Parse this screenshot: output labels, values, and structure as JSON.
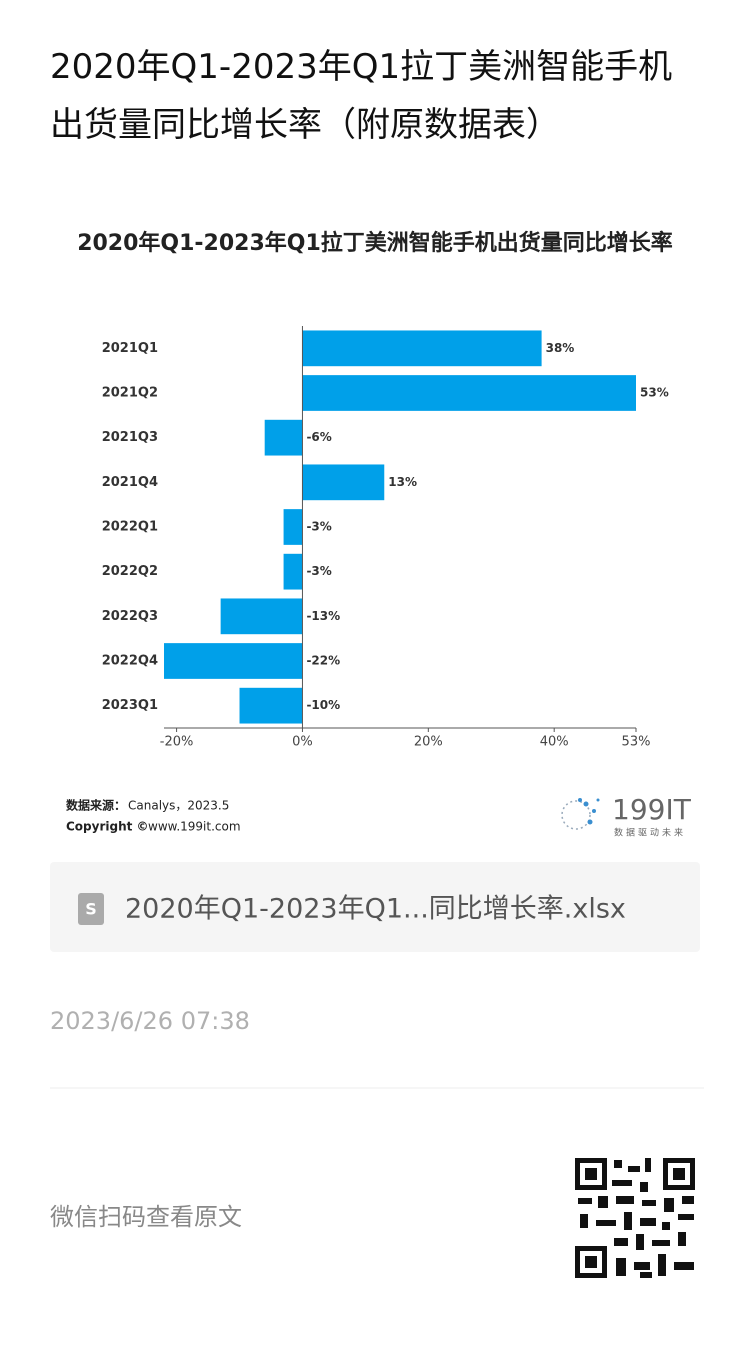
{
  "page_title": "2020年Q1-2023年Q1拉丁美洲智能手机出货量同比增长率（附原数据表）",
  "chart_data": {
    "type": "barh",
    "title": "2020年Q1-2023年Q1拉丁美洲智能手机出货量同比增长率",
    "categories": [
      "2021Q1",
      "2021Q2",
      "2021Q3",
      "2021Q4",
      "2022Q1",
      "2022Q2",
      "2022Q3",
      "2022Q4",
      "2023Q1"
    ],
    "values": [
      38,
      53,
      -6,
      13,
      -3,
      -3,
      -13,
      -22,
      -10
    ],
    "value_labels": [
      "38%",
      "53%",
      "-6%",
      "13%",
      "-3%",
      "-3%",
      "-13%",
      "-22%",
      "-10%"
    ],
    "color": "#00a0e9",
    "xlim": [
      -22,
      53
    ],
    "xticks": [
      {
        "value": -20,
        "label": "-20%"
      },
      {
        "value": 0,
        "label": "0%"
      },
      {
        "value": 20,
        "label": "20%"
      },
      {
        "value": 40,
        "label": "40%"
      },
      {
        "value": 53,
        "label": "53%"
      }
    ],
    "grid": false
  },
  "source_label": "数据来源：",
  "source": "Canalys，2023.5",
  "copyright_label": "Copyright ©",
  "copyright": "www.199it.com",
  "logo": {
    "name": "199IT",
    "slogan": "数据驱动未来"
  },
  "attachment": "2020年Q1-2023年Q1...同比增长率.xlsx",
  "date": "2023/6/26 07:38",
  "footer": "微信扫码查看原文"
}
